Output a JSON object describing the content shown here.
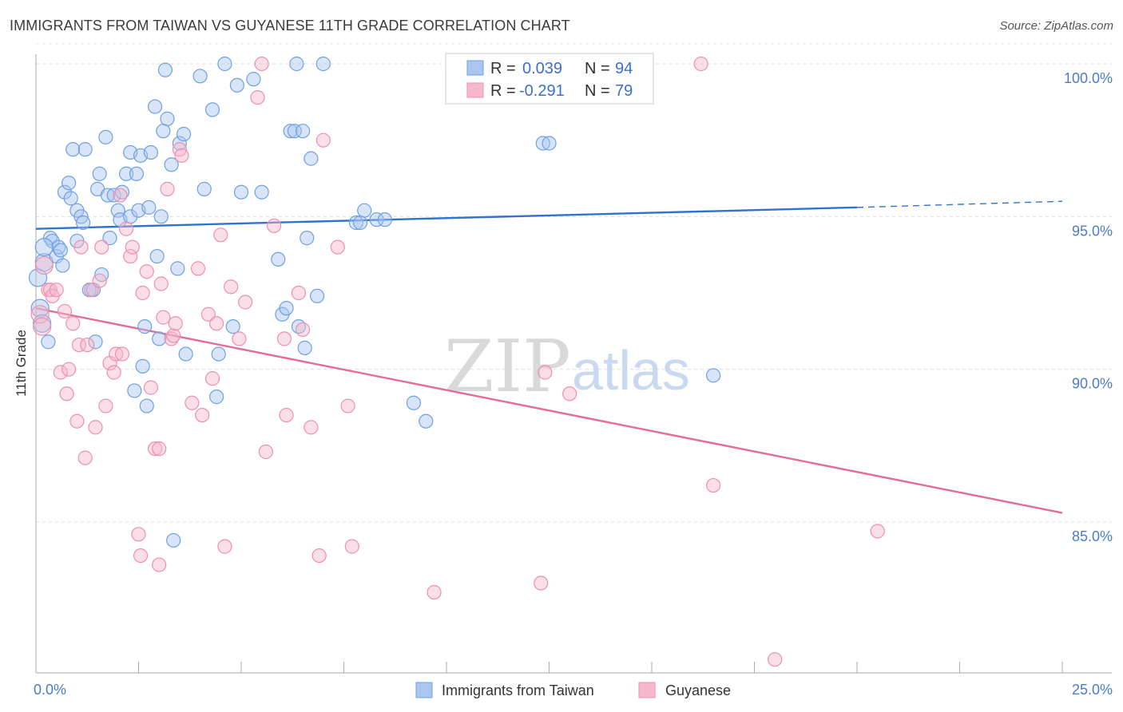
{
  "header": {
    "title": "IMMIGRANTS FROM TAIWAN VS GUYANESE 11TH GRADE CORRELATION CHART",
    "source": "Source: ZipAtlas.com"
  },
  "watermark": {
    "zip": "ZIP",
    "atlas": "atlas"
  },
  "legend_box": {
    "rows": [
      {
        "r_label": "R = ",
        "r_value": "0.039",
        "n_label": "N = ",
        "n_value": "94",
        "color": "#a9c6f0"
      },
      {
        "r_label": "R = ",
        "r_value": "-0.291",
        "n_label": "N = ",
        "n_value": "79",
        "color": "#f5b8cc"
      }
    ]
  },
  "chart_data": {
    "type": "scatter",
    "title": "IMMIGRANTS FROM TAIWAN VS GUYANESE 11TH GRADE CORRELATION CHART",
    "ylabel": "11th Grade",
    "xlabel": "",
    "xlim": [
      0,
      25
    ],
    "ylim": [
      80.5,
      100.7
    ],
    "x_tick_labels": [
      {
        "value": 0,
        "label": "0.0%"
      },
      {
        "value": 25,
        "label": "25.0%"
      }
    ],
    "y_tick_labels": [
      {
        "value": 100,
        "label": "100.0%"
      },
      {
        "value": 95,
        "label": "95.0%"
      },
      {
        "value": 90,
        "label": "90.0%"
      },
      {
        "value": 85,
        "label": "85.0%"
      }
    ],
    "grid": true,
    "legend_position": "bottom",
    "series": [
      {
        "name": "Immigrants from Taiwan",
        "color": "#6fa0e0",
        "fill": "#a9c6f0",
        "trend": {
          "x0": 0,
          "y0": 94.6,
          "x1": 20,
          "y1": 95.3,
          "dashed_to": 25,
          "dashed_y": 95.5
        },
        "points": [
          [
            0.05,
            93.0
          ],
          [
            0.1,
            92.0
          ],
          [
            0.15,
            91.5
          ],
          [
            0.2,
            93.5
          ],
          [
            0.3,
            90.9
          ],
          [
            0.35,
            94.3
          ],
          [
            0.4,
            94.2
          ],
          [
            0.5,
            93.7
          ],
          [
            0.55,
            94.0
          ],
          [
            0.6,
            93.9
          ],
          [
            0.65,
            93.4
          ],
          [
            0.7,
            95.8
          ],
          [
            0.8,
            96.1
          ],
          [
            0.85,
            95.6
          ],
          [
            0.9,
            97.2
          ],
          [
            1.0,
            95.2
          ],
          [
            1.1,
            95.0
          ],
          [
            1.15,
            94.8
          ],
          [
            1.2,
            97.2
          ],
          [
            1.3,
            92.6
          ],
          [
            1.4,
            92.6
          ],
          [
            1.45,
            90.9
          ],
          [
            1.5,
            95.9
          ],
          [
            1.55,
            96.4
          ],
          [
            1.6,
            93.1
          ],
          [
            1.7,
            97.6
          ],
          [
            1.75,
            95.7
          ],
          [
            1.8,
            94.3
          ],
          [
            1.9,
            95.7
          ],
          [
            2.0,
            95.2
          ],
          [
            2.05,
            94.9
          ],
          [
            2.1,
            95.8
          ],
          [
            2.2,
            96.4
          ],
          [
            2.3,
            95.0
          ],
          [
            2.3,
            97.1
          ],
          [
            2.4,
            89.3
          ],
          [
            2.45,
            96.4
          ],
          [
            2.5,
            95.2
          ],
          [
            2.55,
            97.0
          ],
          [
            2.6,
            90.1
          ],
          [
            2.65,
            91.4
          ],
          [
            2.7,
            88.8
          ],
          [
            2.75,
            95.3
          ],
          [
            2.8,
            97.1
          ],
          [
            2.9,
            98.6
          ],
          [
            2.95,
            93.7
          ],
          [
            3.0,
            91.0
          ],
          [
            3.05,
            95.0
          ],
          [
            3.1,
            97.8
          ],
          [
            3.15,
            99.8
          ],
          [
            3.2,
            98.2
          ],
          [
            3.3,
            96.7
          ],
          [
            3.45,
            93.3
          ],
          [
            3.5,
            97.4
          ],
          [
            3.6,
            97.7
          ],
          [
            3.65,
            90.5
          ],
          [
            4.0,
            99.6
          ],
          [
            4.1,
            95.9
          ],
          [
            4.3,
            98.5
          ],
          [
            4.4,
            89.1
          ],
          [
            4.45,
            90.5
          ],
          [
            4.6,
            100.0
          ],
          [
            4.8,
            91.4
          ],
          [
            4.9,
            99.3
          ],
          [
            5.0,
            95.8
          ],
          [
            5.3,
            99.5
          ],
          [
            5.5,
            95.8
          ],
          [
            5.9,
            93.6
          ],
          [
            6.0,
            91.8
          ],
          [
            6.1,
            92.0
          ],
          [
            6.2,
            97.8
          ],
          [
            6.3,
            97.8
          ],
          [
            6.4,
            91.4
          ],
          [
            6.5,
            97.8
          ],
          [
            6.55,
            90.7
          ],
          [
            6.6,
            94.3
          ],
          [
            6.7,
            96.9
          ],
          [
            6.85,
            92.4
          ],
          [
            7.0,
            100.0
          ],
          [
            7.8,
            94.8
          ],
          [
            7.9,
            94.8
          ],
          [
            8.0,
            95.2
          ],
          [
            8.3,
            94.9
          ],
          [
            8.5,
            94.9
          ],
          [
            9.2,
            88.9
          ],
          [
            9.5,
            88.3
          ],
          [
            12.0,
            100.0
          ],
          [
            12.35,
            97.4
          ],
          [
            12.5,
            97.4
          ],
          [
            16.5,
            89.8
          ],
          [
            6.35,
            100.0
          ],
          [
            3.35,
            84.4
          ],
          [
            0.2,
            94.0
          ],
          [
            1.0,
            94.2
          ]
        ]
      },
      {
        "name": "Guyanese",
        "color": "#ee8fb0",
        "fill": "#f5b8cc",
        "trend": {
          "x0": 0,
          "y0": 92.0,
          "x1": 25,
          "y1": 85.3
        },
        "points": [
          [
            0.1,
            91.8
          ],
          [
            0.15,
            91.4
          ],
          [
            0.2,
            93.4
          ],
          [
            0.3,
            92.6
          ],
          [
            0.35,
            92.6
          ],
          [
            0.4,
            92.4
          ],
          [
            0.5,
            92.6
          ],
          [
            0.6,
            89.9
          ],
          [
            0.7,
            91.9
          ],
          [
            0.75,
            89.2
          ],
          [
            0.8,
            90.0
          ],
          [
            0.9,
            91.5
          ],
          [
            1.0,
            88.3
          ],
          [
            1.05,
            90.8
          ],
          [
            1.1,
            94.0
          ],
          [
            1.2,
            87.1
          ],
          [
            1.25,
            90.8
          ],
          [
            1.35,
            92.6
          ],
          [
            1.45,
            88.1
          ],
          [
            1.55,
            92.9
          ],
          [
            1.6,
            94.0
          ],
          [
            1.7,
            88.8
          ],
          [
            1.8,
            90.2
          ],
          [
            1.9,
            89.9
          ],
          [
            1.95,
            90.5
          ],
          [
            2.05,
            95.7
          ],
          [
            2.1,
            90.5
          ],
          [
            2.2,
            94.6
          ],
          [
            2.3,
            93.7
          ],
          [
            2.35,
            94.0
          ],
          [
            2.5,
            84.6
          ],
          [
            2.55,
            83.9
          ],
          [
            2.6,
            92.5
          ],
          [
            2.7,
            93.2
          ],
          [
            2.8,
            89.4
          ],
          [
            2.9,
            87.4
          ],
          [
            3.0,
            83.6
          ],
          [
            3.05,
            92.8
          ],
          [
            3.1,
            91.7
          ],
          [
            3.2,
            95.9
          ],
          [
            3.3,
            91.0
          ],
          [
            3.35,
            91.1
          ],
          [
            3.4,
            91.5
          ],
          [
            3.5,
            97.2
          ],
          [
            3.55,
            97.0
          ],
          [
            3.8,
            88.9
          ],
          [
            3.95,
            93.3
          ],
          [
            4.05,
            88.5
          ],
          [
            4.2,
            91.8
          ],
          [
            4.3,
            89.7
          ],
          [
            4.4,
            91.5
          ],
          [
            4.5,
            94.4
          ],
          [
            4.6,
            84.2
          ],
          [
            4.75,
            92.7
          ],
          [
            4.95,
            91.0
          ],
          [
            5.1,
            92.2
          ],
          [
            5.4,
            98.9
          ],
          [
            5.5,
            100.0
          ],
          [
            5.6,
            87.3
          ],
          [
            5.8,
            94.7
          ],
          [
            6.05,
            91.0
          ],
          [
            6.1,
            88.5
          ],
          [
            6.4,
            92.5
          ],
          [
            6.5,
            91.3
          ],
          [
            6.7,
            88.1
          ],
          [
            6.9,
            83.9
          ],
          [
            7.35,
            94.0
          ],
          [
            7.6,
            88.8
          ],
          [
            7.7,
            84.2
          ],
          [
            9.7,
            82.7
          ],
          [
            12.3,
            83.0
          ],
          [
            12.4,
            89.9
          ],
          [
            13.0,
            89.2
          ],
          [
            16.5,
            86.2
          ],
          [
            16.2,
            100.0
          ],
          [
            20.5,
            84.7
          ],
          [
            18.0,
            80.5
          ],
          [
            7.0,
            97.5
          ],
          [
            3.0,
            87.4
          ]
        ]
      }
    ]
  }
}
